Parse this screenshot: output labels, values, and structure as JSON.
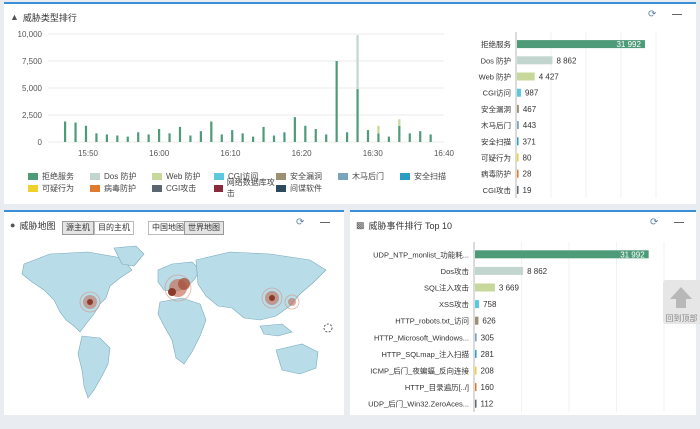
{
  "threat_type_panel": {
    "title": "威胁类型排行",
    "chart_data": {
      "type": "bar",
      "x_ticks": [
        "15:50",
        "16:00",
        "16:10",
        "16:20",
        "16:30",
        "16:40"
      ],
      "y_ticks": [
        "10,000",
        "7,500",
        "5,000",
        "2,500",
        "0"
      ],
      "ylim": [
        0,
        10000
      ],
      "series": [
        {
          "name": "拒绝服务",
          "color": "#4e9b7a",
          "values": [
            1900,
            1800,
            1500,
            800,
            700,
            600,
            500,
            900,
            700,
            1200,
            800,
            1400,
            600,
            1000,
            1900,
            700,
            1100,
            800,
            500,
            1400,
            600,
            900,
            2300,
            1500,
            1200,
            700,
            7500,
            900,
            4900,
            1100,
            800,
            500,
            1500,
            800,
            1000,
            700
          ]
        },
        {
          "name": "Dos 防护",
          "color": "#c3d5cf",
          "values": [
            0,
            0,
            0,
            0,
            0,
            0,
            0,
            0,
            0,
            0,
            0,
            0,
            0,
            0,
            0,
            0,
            0,
            0,
            0,
            0,
            0,
            0,
            0,
            0,
            0,
            0,
            0,
            0,
            5000,
            0,
            0,
            0,
            0,
            0,
            0,
            0
          ]
        },
        {
          "name": "Web 防护",
          "color": "#c8d89a",
          "values": [
            0,
            0,
            0,
            0,
            0,
            0,
            0,
            0,
            0,
            0,
            0,
            0,
            0,
            0,
            0,
            0,
            0,
            0,
            0,
            0,
            0,
            0,
            0,
            0,
            0,
            0,
            0,
            0,
            0,
            0,
            700,
            0,
            600,
            0,
            0,
            0
          ]
        }
      ],
      "ranking_chart": {
        "type": "bar",
        "orientation": "horizontal",
        "categories": [
          "拒绝服务",
          "Dos 防护",
          "Web 防护",
          "CGI访问",
          "安全漏洞",
          "木马后门",
          "安全扫描",
          "可疑行为",
          "病毒防护",
          "CGI攻击"
        ],
        "values": [
          31992,
          8862,
          4427,
          987,
          467,
          443,
          371,
          80,
          28,
          19
        ],
        "value_labels": [
          "31 992",
          "8 862",
          "4 427",
          "987",
          "467",
          "443",
          "371",
          "80",
          "28",
          "19"
        ],
        "colors": [
          "#4e9b7a",
          "#c3d5cf",
          "#c8d89a",
          "#5bc8e0",
          "#9c8f73",
          "#7aa4bb",
          "#2b9cc4",
          "#f0d02a",
          "#e07a2c",
          "#5b6670"
        ],
        "xlim": [
          0,
          35000
        ]
      }
    },
    "legend": [
      {
        "label": "拒绝服务",
        "color": "#4e9b7a"
      },
      {
        "label": "Dos 防护",
        "color": "#c3d5cf"
      },
      {
        "label": "Web 防护",
        "color": "#c8d89a"
      },
      {
        "label": "CGI访问",
        "color": "#5bc8e0"
      },
      {
        "label": "安全漏洞",
        "color": "#9c8f73"
      },
      {
        "label": "木马后门",
        "color": "#7aa4bb"
      },
      {
        "label": "安全扫描",
        "color": "#2b9cc4"
      },
      {
        "label": "可疑行为",
        "color": "#f0d02a"
      },
      {
        "label": "病毒防护",
        "color": "#e07a2c"
      },
      {
        "label": "CGI攻击",
        "color": "#5b6670"
      },
      {
        "label": "网络数据库攻击",
        "color": "#8a2b3c"
      },
      {
        "label": "间谍软件",
        "color": "#2d4b5e"
      }
    ]
  },
  "threat_map_panel": {
    "title": "威胁地图",
    "btn_source": "源主机",
    "btn_target": "目的主机",
    "btn_china": "中国地图",
    "btn_world": "世界地图"
  },
  "event_panel": {
    "title": "威胁事件排行 Top 10",
    "chart_data": {
      "type": "bar",
      "orientation": "horizontal",
      "categories": [
        "UDP_NTP_monlist_功能耗...",
        "Dos攻击",
        "SQL注入攻击",
        "XSS攻击",
        "HTTP_robots.txt_访问",
        "HTTP_Microsoft_Windows...",
        "HTTP_SQLmap_注入扫描",
        "ICMP_后门_夜蝙蝠_反向连接",
        "HTTP_目录遍历[../]",
        "UDP_后门_Win32.ZeroAces..."
      ],
      "values": [
        31992,
        8862,
        3669,
        758,
        626,
        305,
        281,
        208,
        160,
        112
      ],
      "value_labels": [
        "31 992",
        "8 862",
        "3 669",
        "758",
        "626",
        "305",
        "281",
        "208",
        "160",
        "112"
      ],
      "colors": [
        "#4e9b7a",
        "#c3d5cf",
        "#c8d89a",
        "#5bc8e0",
        "#9c8f73",
        "#7aa4bb",
        "#2b9cc4",
        "#f0d02a",
        "#e07a2c",
        "#5b6670"
      ],
      "xlim": [
        0,
        35000
      ]
    }
  },
  "back_to_top": "回到顶部"
}
